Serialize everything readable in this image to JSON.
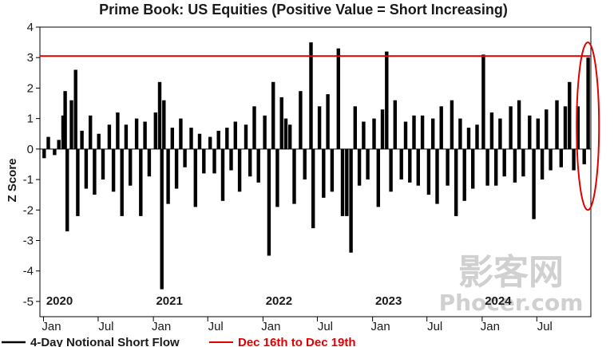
{
  "chart_data": {
    "type": "bar",
    "title": "Prime Book: US Equities (Positive Value = Short Increasing)",
    "ylabel": "Z Score",
    "xlabel": "",
    "ylim": [
      -5.5,
      4
    ],
    "yticks": [
      4,
      3,
      2,
      1,
      0,
      -1,
      -2,
      -3,
      -4,
      -5
    ],
    "xlim": [
      "2019-12-20",
      "2024-12-28"
    ],
    "month_ticks": [
      {
        "label": "Jan",
        "date": "2020-01-01"
      },
      {
        "label": "Jul",
        "date": "2020-07-01"
      },
      {
        "label": "Jan",
        "date": "2021-01-01"
      },
      {
        "label": "Jul",
        "date": "2021-07-01"
      },
      {
        "label": "Jan",
        "date": "2022-01-01"
      },
      {
        "label": "Jul",
        "date": "2022-07-01"
      },
      {
        "label": "Jan",
        "date": "2023-01-01"
      },
      {
        "label": "Jul",
        "date": "2023-07-01"
      },
      {
        "label": "Jan",
        "date": "2024-01-01"
      },
      {
        "label": "Jul",
        "date": "2024-07-01"
      }
    ],
    "year_labels": [
      {
        "label": "2020",
        "date": "2020-01-01"
      },
      {
        "label": "2021",
        "date": "2021-01-01"
      },
      {
        "label": "2022",
        "date": "2022-01-01"
      },
      {
        "label": "2023",
        "date": "2023-01-01"
      },
      {
        "label": "2024",
        "date": "2024-01-01"
      }
    ],
    "grid": false,
    "legend_position": "bottom-left",
    "series": [
      {
        "name": "4-Day Notional Short Flow",
        "color": "#000000",
        "points": [
          [
            "2020-01-03",
            -0.3
          ],
          [
            "2020-01-17",
            0.4
          ],
          [
            "2020-02-07",
            -0.2
          ],
          [
            "2020-02-21",
            0.3
          ],
          [
            "2020-03-06",
            1.1
          ],
          [
            "2020-03-13",
            1.9
          ],
          [
            "2020-03-20",
            -2.7
          ],
          [
            "2020-04-03",
            1.6
          ],
          [
            "2020-04-17",
            2.6
          ],
          [
            "2020-04-24",
            -2.2
          ],
          [
            "2020-05-08",
            0.6
          ],
          [
            "2020-05-22",
            -1.3
          ],
          [
            "2020-06-05",
            1.1
          ],
          [
            "2020-06-19",
            -1.5
          ],
          [
            "2020-07-03",
            0.5
          ],
          [
            "2020-07-17",
            -1.0
          ],
          [
            "2020-08-07",
            0.8
          ],
          [
            "2020-08-21",
            -1.4
          ],
          [
            "2020-09-04",
            1.2
          ],
          [
            "2020-09-18",
            -2.2
          ],
          [
            "2020-10-02",
            0.8
          ],
          [
            "2020-10-16",
            -1.2
          ],
          [
            "2020-11-06",
            1.0
          ],
          [
            "2020-11-20",
            -2.2
          ],
          [
            "2020-12-04",
            0.9
          ],
          [
            "2020-12-18",
            -0.9
          ],
          [
            "2021-01-08",
            1.2
          ],
          [
            "2021-01-22",
            2.2
          ],
          [
            "2021-01-29",
            -4.6
          ],
          [
            "2021-02-05",
            1.6
          ],
          [
            "2021-02-19",
            -1.8
          ],
          [
            "2021-03-05",
            0.7
          ],
          [
            "2021-03-19",
            -1.3
          ],
          [
            "2021-04-02",
            1.0
          ],
          [
            "2021-04-16",
            -0.6
          ],
          [
            "2021-05-07",
            0.7
          ],
          [
            "2021-05-21",
            -1.9
          ],
          [
            "2021-06-04",
            0.5
          ],
          [
            "2021-06-18",
            -0.8
          ],
          [
            "2021-07-09",
            0.4
          ],
          [
            "2021-07-23",
            -0.8
          ],
          [
            "2021-08-06",
            0.6
          ],
          [
            "2021-08-20",
            -1.7
          ],
          [
            "2021-09-03",
            0.7
          ],
          [
            "2021-09-17",
            -0.7
          ],
          [
            "2021-10-01",
            0.9
          ],
          [
            "2021-10-15",
            -1.4
          ],
          [
            "2021-11-05",
            0.8
          ],
          [
            "2021-11-19",
            -0.9
          ],
          [
            "2021-12-03",
            1.4
          ],
          [
            "2021-12-17",
            -1.1
          ],
          [
            "2022-01-07",
            1.1
          ],
          [
            "2022-01-21",
            -3.5
          ],
          [
            "2022-02-04",
            2.2
          ],
          [
            "2022-02-18",
            -1.9
          ],
          [
            "2022-03-04",
            1.7
          ],
          [
            "2022-03-18",
            1.0
          ],
          [
            "2022-04-01",
            0.8
          ],
          [
            "2022-04-15",
            -1.8
          ],
          [
            "2022-05-06",
            1.9
          ],
          [
            "2022-05-20",
            -1.0
          ],
          [
            "2022-06-10",
            3.5
          ],
          [
            "2022-06-17",
            -2.6
          ],
          [
            "2022-07-08",
            1.4
          ],
          [
            "2022-07-22",
            -1.6
          ],
          [
            "2022-08-05",
            1.8
          ],
          [
            "2022-08-19",
            -1.4
          ],
          [
            "2022-09-09",
            3.3
          ],
          [
            "2022-09-23",
            -2.2
          ],
          [
            "2022-10-07",
            -2.2
          ],
          [
            "2022-10-21",
            -3.4
          ],
          [
            "2022-11-04",
            1.4
          ],
          [
            "2022-11-18",
            -1.2
          ],
          [
            "2022-12-02",
            0.9
          ],
          [
            "2022-12-16",
            -1.0
          ],
          [
            "2023-01-06",
            1.0
          ],
          [
            "2023-01-20",
            -1.9
          ],
          [
            "2023-02-03",
            1.3
          ],
          [
            "2023-02-17",
            3.2
          ],
          [
            "2023-03-03",
            -1.4
          ],
          [
            "2023-03-17",
            1.6
          ],
          [
            "2023-04-07",
            -1.0
          ],
          [
            "2023-04-21",
            0.9
          ],
          [
            "2023-05-05",
            -1.1
          ],
          [
            "2023-05-19",
            1.1
          ],
          [
            "2023-06-02",
            -1.2
          ],
          [
            "2023-06-16",
            1.1
          ],
          [
            "2023-07-07",
            -1.5
          ],
          [
            "2023-07-21",
            1.0
          ],
          [
            "2023-08-04",
            -1.8
          ],
          [
            "2023-08-18",
            1.4
          ],
          [
            "2023-09-08",
            -1.2
          ],
          [
            "2023-09-22",
            1.6
          ],
          [
            "2023-10-06",
            -2.2
          ],
          [
            "2023-10-20",
            1.0
          ],
          [
            "2023-11-03",
            -1.7
          ],
          [
            "2023-11-17",
            0.7
          ],
          [
            "2023-12-01",
            -1.3
          ],
          [
            "2023-12-15",
            0.8
          ],
          [
            "2024-01-05",
            3.1
          ],
          [
            "2024-01-19",
            -1.2
          ],
          [
            "2024-02-02",
            1.2
          ],
          [
            "2024-02-16",
            -1.2
          ],
          [
            "2024-03-01",
            1.0
          ],
          [
            "2024-03-15",
            -0.9
          ],
          [
            "2024-04-05",
            1.4
          ],
          [
            "2024-04-19",
            -1.1
          ],
          [
            "2024-05-03",
            1.6
          ],
          [
            "2024-05-17",
            -0.9
          ],
          [
            "2024-06-07",
            1.1
          ],
          [
            "2024-06-21",
            -2.3
          ],
          [
            "2024-07-05",
            1.0
          ],
          [
            "2024-07-19",
            -1.0
          ],
          [
            "2024-08-02",
            1.3
          ],
          [
            "2024-08-16",
            -0.7
          ],
          [
            "2024-09-06",
            1.6
          ],
          [
            "2024-09-20",
            -0.6
          ],
          [
            "2024-10-04",
            1.4
          ],
          [
            "2024-10-18",
            2.2
          ],
          [
            "2024-11-01",
            -0.7
          ],
          [
            "2024-11-15",
            1.4
          ],
          [
            "2024-12-06",
            -0.5
          ],
          [
            "2024-12-19",
            3.0
          ]
        ]
      },
      {
        "name": "Dec 16th to Dec 19th",
        "color": "#e00000",
        "type": "hline",
        "value": 3.05
      }
    ],
    "annotations": [
      {
        "type": "ellipse",
        "color": "#e00000",
        "date": "2024-12-18",
        "y_center": 0.75,
        "y_half_height": 2.75
      }
    ]
  },
  "watermark": {
    "text": "影客网",
    "url": "Phocer.com"
  }
}
